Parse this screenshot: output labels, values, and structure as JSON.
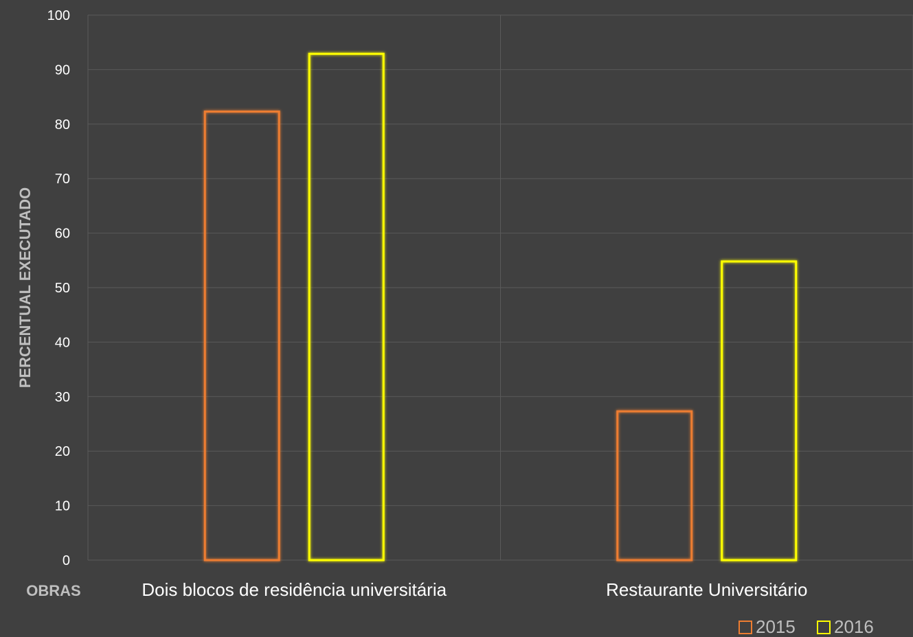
{
  "chart_data": {
    "type": "bar",
    "categories": [
      "Dois blocos de residência universitária",
      "Restaurante Universitário"
    ],
    "series": [
      {
        "name": "2015",
        "values": [
          82.3,
          27.3
        ],
        "color": "#ed7d31"
      },
      {
        "name": "2016",
        "values": [
          92.9,
          54.8
        ],
        "color": "#ffff00"
      }
    ],
    "ylim": [
      0,
      100
    ],
    "yticks": [
      0,
      10,
      20,
      30,
      40,
      50,
      60,
      70,
      80,
      90,
      100
    ],
    "xlabel": "OBRAS",
    "ylabel": "PERCENTUAL EXECUTADO",
    "grid": true,
    "legend_position": "bottom-right",
    "bar_style": "outline"
  }
}
